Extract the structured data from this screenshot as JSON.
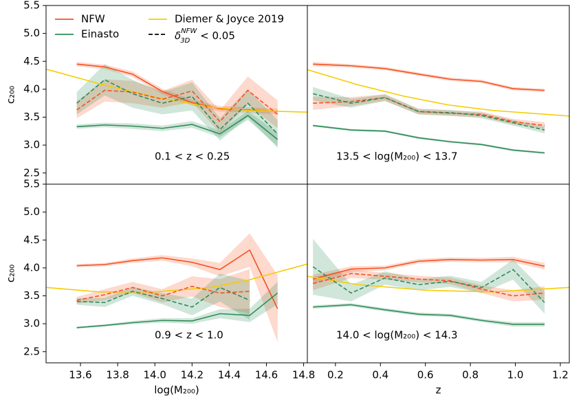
{
  "chart_data": [
    {
      "type": "line",
      "annotation": "0.1 < z < 0.25",
      "ylabel": "c₂₀₀",
      "xlim": [
        13.415,
        14.82
      ],
      "ylim": [
        2.3,
        5.5
      ],
      "yticks": [
        2.5,
        {
          "value": 3,
          "label": "3.0"
        },
        3.5,
        {
          "value": 4,
          "label": "4.0"
        },
        4.5,
        {
          "value": 5,
          "label": "5.0"
        },
        5.5
      ],
      "dashed_label": {
        "symbol": "δ",
        "sup": "NFW",
        "sub": "3D",
        "tail": " < 0.05"
      },
      "x": [
        13.58,
        13.73,
        13.88,
        14.04,
        14.2,
        14.35,
        14.5,
        14.66
      ],
      "series": [
        {
          "name": "NFW",
          "color": "#f4511e",
          "values": [
            4.45,
            4.4,
            4.27,
            3.96,
            3.76,
            3.65,
            3.63,
            3.6
          ],
          "errors": [
            0.04,
            0.04,
            0.05,
            0.05,
            0.05,
            0.05,
            0.05,
            0.05
          ]
        },
        {
          "name": "Einasto",
          "color": "#2e8b57",
          "values": [
            3.33,
            3.36,
            3.34,
            3.3,
            3.37,
            3.2,
            3.53,
            3.1
          ],
          "errors": [
            0.04,
            0.04,
            0.05,
            0.05,
            0.06,
            0.06,
            0.08,
            0.12
          ]
        },
        {
          "name": "Diemer & Joyce 2019",
          "color": "#f5cc00",
          "x": [
            13.415,
            13.7,
            14.0,
            14.3,
            14.5,
            14.82
          ],
          "values": [
            4.36,
            4.1,
            3.86,
            3.68,
            3.62,
            3.59
          ]
        },
        {
          "color": "#f4511e",
          "dashed": true,
          "values": [
            3.63,
            3.98,
            3.95,
            3.82,
            3.97,
            3.42,
            3.98,
            3.55
          ],
          "errors": [
            0.15,
            0.2,
            0.2,
            0.15,
            0.2,
            0.2,
            0.25,
            0.25
          ]
        },
        {
          "color": "#2e8b57",
          "dashed": true,
          "values": [
            3.75,
            4.17,
            3.92,
            3.75,
            3.87,
            3.28,
            3.75,
            3.2
          ],
          "errors": [
            0.2,
            0.28,
            0.25,
            0.2,
            0.25,
            0.2,
            0.25,
            0.25
          ]
        }
      ]
    },
    {
      "type": "line",
      "annotation": "13.5 < log(M₂₀₀) < 13.7",
      "xlim": [
        0.075,
        1.24
      ],
      "ylim": [
        2.3,
        5.5
      ],
      "x": [
        0.1,
        0.27,
        0.42,
        0.57,
        0.71,
        0.85,
        0.99,
        1.13
      ],
      "series": [
        {
          "color": "#f4511e",
          "values": [
            4.45,
            4.42,
            4.37,
            4.27,
            4.18,
            4.14,
            4.01,
            3.98
          ],
          "errors": [
            0.04,
            0.03,
            0.03,
            0.03,
            0.03,
            0.03,
            0.03,
            0.03
          ]
        },
        {
          "color": "#2e8b57",
          "values": [
            3.35,
            3.27,
            3.25,
            3.13,
            3.06,
            3.01,
            2.91,
            2.86
          ],
          "errors": [
            0.02,
            0.02,
            0.02,
            0.02,
            0.02,
            0.02,
            0.02,
            0.02
          ]
        },
        {
          "color": "#f5cc00",
          "x": [
            0.075,
            0.3,
            0.5,
            0.7,
            0.9,
            1.24
          ],
          "values": [
            4.35,
            4.08,
            3.88,
            3.72,
            3.62,
            3.52
          ]
        },
        {
          "color": "#f4511e",
          "dashed": true,
          "values": [
            3.75,
            3.78,
            3.85,
            3.6,
            3.57,
            3.55,
            3.42,
            3.35
          ],
          "errors": [
            0.12,
            0.08,
            0.06,
            0.05,
            0.05,
            0.05,
            0.05,
            0.06
          ]
        },
        {
          "color": "#2e8b57",
          "dashed": true,
          "values": [
            3.92,
            3.75,
            3.85,
            3.6,
            3.58,
            3.53,
            3.4,
            3.27
          ],
          "errors": [
            0.12,
            0.08,
            0.06,
            0.05,
            0.05,
            0.05,
            0.05,
            0.06
          ]
        }
      ]
    },
    {
      "type": "line",
      "annotation": "0.9 < z < 1.0",
      "ylabel": "c₂₀₀",
      "xlabel": "log(M₂₀₀)",
      "xlim": [
        13.415,
        14.82
      ],
      "ylim": [
        2.3,
        5.5
      ],
      "yticks": [
        2.5,
        {
          "value": 3,
          "label": "3.0"
        },
        3.5,
        {
          "value": 4,
          "label": "4.0"
        },
        4.5,
        {
          "value": 5,
          "label": "5.0"
        },
        5.5
      ],
      "xticks": [
        13.6,
        13.8,
        {
          "value": 14,
          "label": "14.0"
        },
        14.2,
        14.4,
        14.6,
        14.8
      ],
      "x": [
        13.58,
        13.73,
        13.88,
        14.04,
        14.2,
        14.35,
        14.51,
        14.66
      ],
      "series": [
        {
          "color": "#f4511e",
          "values": [
            4.04,
            4.06,
            4.13,
            4.18,
            4.1,
            3.97,
            4.32,
            3.27
          ],
          "errors": [
            0.03,
            0.03,
            0.04,
            0.05,
            0.07,
            0.12,
            0.3,
            0.6
          ]
        },
        {
          "color": "#2e8b57",
          "values": [
            2.93,
            2.97,
            3.02,
            3.06,
            3.05,
            3.18,
            3.15,
            3.55
          ],
          "errors": [
            0.02,
            0.02,
            0.03,
            0.04,
            0.05,
            0.08,
            0.12,
            0.2
          ]
        },
        {
          "color": "#f5cc00",
          "x": [
            13.415,
            13.7,
            14.0,
            14.3,
            14.5,
            14.82
          ],
          "values": [
            3.65,
            3.57,
            3.57,
            3.65,
            3.78,
            4.07
          ]
        },
        {
          "color": "#f4511e",
          "dashed": true,
          "values": [
            3.42,
            3.52,
            3.65,
            3.5,
            3.67,
            3.55,
            3.58,
            null
          ],
          "errors": [
            0.06,
            0.1,
            0.1,
            0.12,
            0.18,
            0.25,
            0.4,
            null
          ]
        },
        {
          "color": "#2e8b57",
          "dashed": true,
          "values": [
            3.4,
            3.38,
            3.58,
            3.45,
            3.3,
            3.65,
            3.42,
            null
          ],
          "errors": [
            0.06,
            0.08,
            0.08,
            0.1,
            0.15,
            0.25,
            0.35,
            null
          ]
        }
      ]
    },
    {
      "type": "line",
      "annotation": "14.0 < log(M₂₀₀) < 14.3",
      "xlabel": "z",
      "xlim": [
        0.075,
        1.24
      ],
      "ylim": [
        2.3,
        5.5
      ],
      "xticks": [
        0.2,
        0.4,
        0.6,
        0.8,
        {
          "value": 1,
          "label": "1.0"
        },
        1.2
      ],
      "x": [
        0.1,
        0.27,
        0.42,
        0.57,
        0.71,
        0.85,
        0.99,
        1.13
      ],
      "series": [
        {
          "color": "#f4511e",
          "values": [
            3.8,
            3.98,
            4.0,
            4.12,
            4.15,
            4.14,
            4.15,
            4.03
          ],
          "errors": [
            0.08,
            0.05,
            0.04,
            0.04,
            0.04,
            0.04,
            0.05,
            0.06
          ]
        },
        {
          "color": "#2e8b57",
          "values": [
            3.3,
            3.34,
            3.25,
            3.17,
            3.15,
            3.06,
            2.99,
            2.99
          ],
          "errors": [
            0.03,
            0.03,
            0.03,
            0.03,
            0.03,
            0.03,
            0.04,
            0.04
          ]
        },
        {
          "color": "#f5cc00",
          "x": [
            0.075,
            0.3,
            0.6,
            0.9,
            1.24
          ],
          "values": [
            3.85,
            3.7,
            3.6,
            3.57,
            3.65
          ]
        },
        {
          "color": "#f4511e",
          "dashed": true,
          "values": [
            3.72,
            3.9,
            3.85,
            3.8,
            3.77,
            3.62,
            3.5,
            3.55
          ],
          "errors": [
            0.12,
            0.08,
            0.06,
            0.06,
            0.06,
            0.07,
            0.1,
            0.12
          ]
        },
        {
          "color": "#2e8b57",
          "dashed": true,
          "values": [
            4.02,
            3.55,
            3.82,
            3.7,
            3.76,
            3.65,
            3.97,
            3.38
          ],
          "errors": [
            0.5,
            0.15,
            0.12,
            0.1,
            0.1,
            0.1,
            0.18,
            0.2
          ]
        }
      ]
    }
  ]
}
